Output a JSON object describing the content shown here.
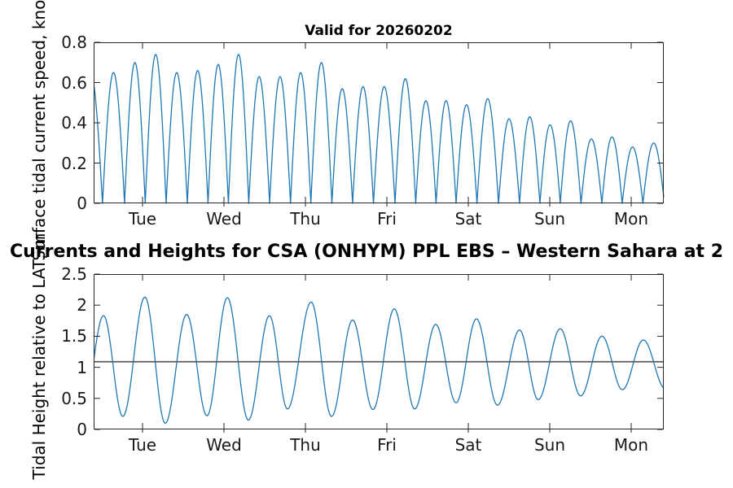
{
  "figure": {
    "title": "Currents and Heights for CSA (ONHYM) PPL EBS  – Western Sahara at 2",
    "background": "#ffffff"
  },
  "colors": {
    "line": "#1f77b4",
    "axis": "#262626",
    "tick_text": "#1a1a1a",
    "mean_line": "#5a5a5a"
  },
  "chart_data": [
    {
      "type": "line",
      "title": "Valid for 20260202",
      "ylabel": "Surface tidal current speed, knots",
      "xlabel": "",
      "x_tick_labels": [
        "Tue",
        "Wed",
        "Thu",
        "Fri",
        "Sat",
        "Sun",
        "Mon"
      ],
      "x_tick_hours": [
        14.4,
        38.4,
        62.4,
        86.4,
        110.4,
        134.4,
        158.4
      ],
      "x_range_hours": [
        0,
        168
      ],
      "ylim": [
        0,
        0.8
      ],
      "y_tick_values": [
        0,
        0.2,
        0.4,
        0.6,
        0.8
      ],
      "y_tick_labels": [
        "0",
        "0.2",
        "0.4",
        "0.6",
        "0.8"
      ],
      "grid": false,
      "legend": "none",
      "series": [
        {
          "name": "surface-tidal-current-speed",
          "style": "rectified-sine-arches",
          "peak_hours": [
            -0.8,
            6.0,
            12.2,
            18.2,
            24.5,
            30.7,
            36.7,
            42.7,
            48.7,
            55.0,
            61.0,
            67.0,
            73.4,
            79.2,
            85.7,
            91.9,
            97.9,
            103.9,
            109.7,
            116.2,
            122.4,
            128.6,
            134.4,
            140.6,
            146.6,
            152.9,
            158.6,
            165.1,
            171.3
          ],
          "peak_knots": [
            0.64,
            0.65,
            0.7,
            0.74,
            0.65,
            0.66,
            0.69,
            0.74,
            0.63,
            0.63,
            0.65,
            0.7,
            0.57,
            0.58,
            0.58,
            0.62,
            0.51,
            0.51,
            0.49,
            0.52,
            0.42,
            0.43,
            0.39,
            0.41,
            0.32,
            0.33,
            0.28,
            0.3,
            0.29
          ]
        }
      ]
    },
    {
      "type": "line",
      "title": "",
      "ylabel": "Tidal Height relative to LAT, m",
      "xlabel": "",
      "x_tick_labels": [
        "Tue",
        "Wed",
        "Thu",
        "Fri",
        "Sat",
        "Sun",
        "Mon"
      ],
      "x_tick_hours": [
        14.4,
        38.4,
        62.4,
        86.4,
        110.4,
        134.4,
        158.4
      ],
      "x_range_hours": [
        0,
        168
      ],
      "ylim": [
        0,
        2.5
      ],
      "y_tick_values": [
        0,
        0.5,
        1,
        1.5,
        2,
        2.5
      ],
      "y_tick_labels": [
        "0",
        "0.5",
        "1",
        "1.5",
        "2",
        "2.5"
      ],
      "grid": false,
      "legend": "none",
      "series": [
        {
          "name": "tidal-height",
          "style": "cosine-interpolated-extremes",
          "extreme_hours": [
            -3.3,
            2.9,
            8.6,
            15.1,
            21.1,
            27.4,
            33.4,
            39.4,
            45.6,
            51.8,
            57.1,
            64.1,
            70.1,
            76.3,
            82.3,
            88.6,
            94.6,
            100.8,
            106.8,
            112.8,
            119.0,
            125.5,
            131.0,
            137.5,
            143.5,
            149.8,
            155.8,
            162.0,
            168.4
          ],
          "extreme_heights": [
            0.2,
            1.83,
            0.21,
            2.13,
            0.1,
            1.85,
            0.22,
            2.12,
            0.15,
            1.83,
            0.33,
            2.05,
            0.21,
            1.76,
            0.32,
            1.94,
            0.33,
            1.69,
            0.43,
            1.78,
            0.39,
            1.6,
            0.48,
            1.62,
            0.54,
            1.5,
            0.64,
            1.44,
            0.66
          ]
        },
        {
          "name": "mean-level-line",
          "style": "hline",
          "value": 1.09
        }
      ]
    }
  ]
}
